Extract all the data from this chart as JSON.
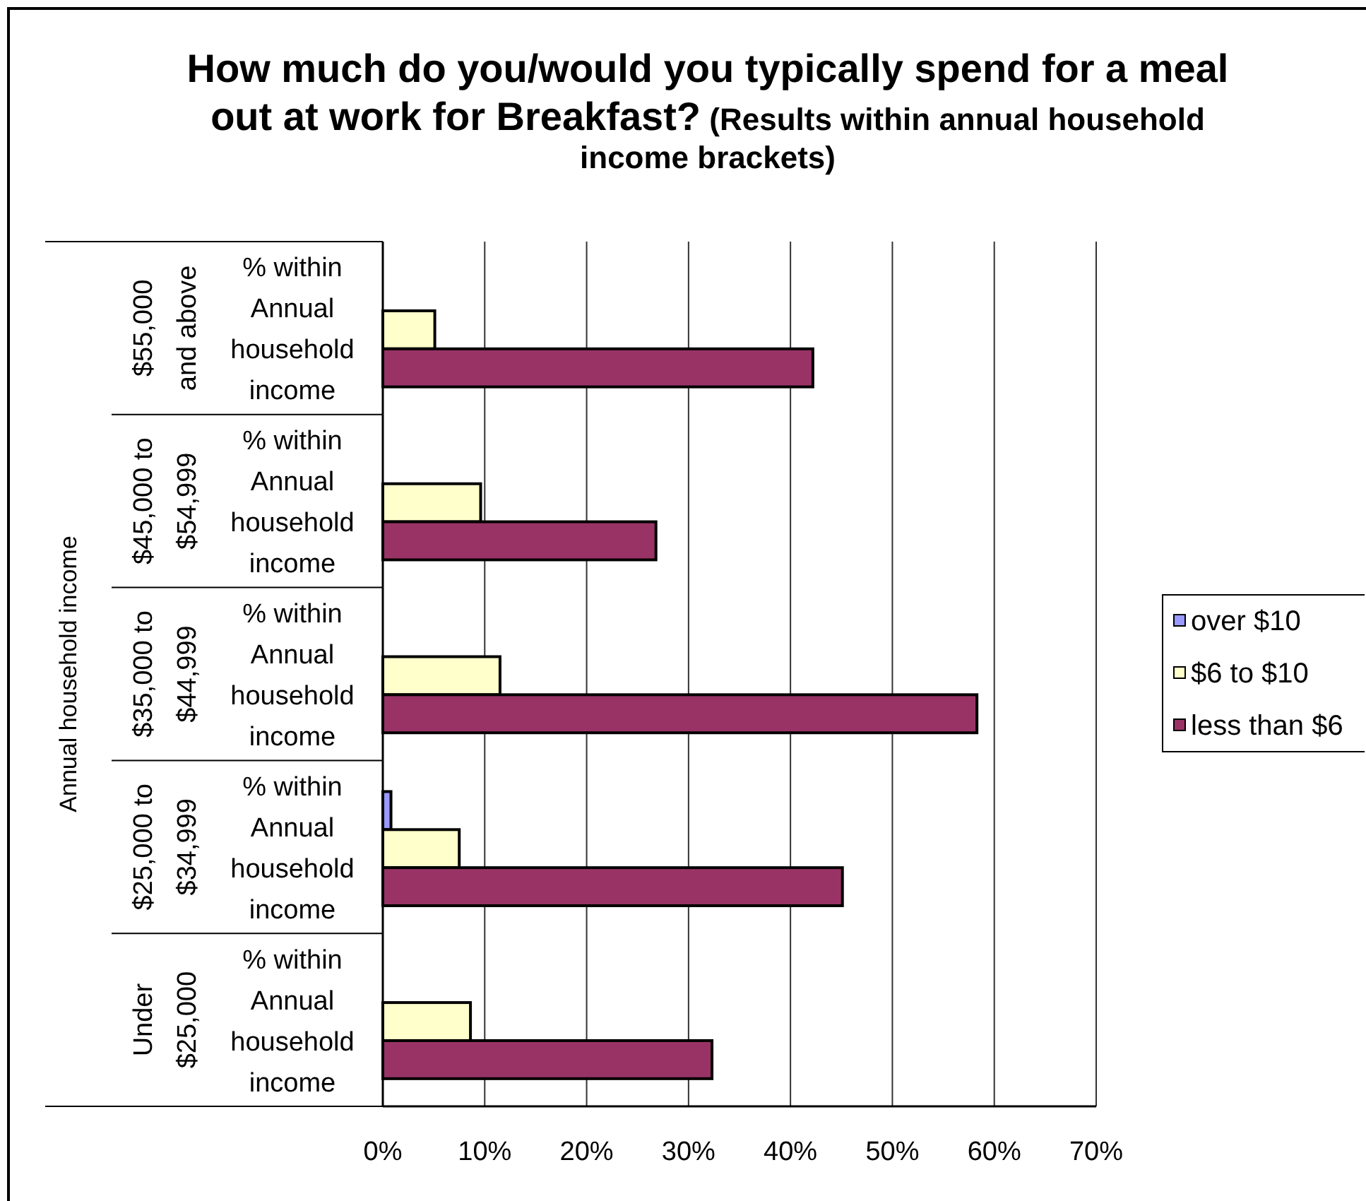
{
  "chart_data": {
    "type": "bar",
    "orientation": "horizontal",
    "title": "How much do you/would you typically spend for a meal out at work for Breakfast? (Results within annual household income brackets)",
    "ylabel": "Annual household income",
    "categories": [
      "$55,000 and above",
      "$45,000 to $54,999",
      "$35,000 to $44,999",
      "$25,000 to $34,999",
      "Under $25,000"
    ],
    "annotations": [
      "% within Annual household income",
      "% within Annual household income",
      "% within Annual household income",
      "% within Annual household income",
      "% within Annual household income"
    ],
    "series": [
      {
        "name": "over $10",
        "color": "#9999ff",
        "values": [
          null,
          null,
          null,
          0.8,
          null
        ]
      },
      {
        "name": "$6 to $10",
        "color": "#ffffcc",
        "values": [
          5.1,
          9.6,
          11.5,
          7.5,
          8.6
        ]
      },
      {
        "name": "less than $6",
        "color": "#993366",
        "values": [
          42.2,
          26.8,
          58.3,
          45.1,
          32.3
        ]
      }
    ],
    "xlim": [
      0,
      70
    ],
    "xticks": [
      {
        "value": 0,
        "label": "0%"
      },
      {
        "value": 10,
        "label": "10%"
      },
      {
        "value": 20,
        "label": "20%"
      },
      {
        "value": 30,
        "label": "30%"
      },
      {
        "value": 40,
        "label": "40%"
      },
      {
        "value": 50,
        "label": "50%"
      },
      {
        "value": 60,
        "label": "60%"
      },
      {
        "value": 70,
        "label": "70%"
      }
    ],
    "grid": "x",
    "legend": "right"
  }
}
